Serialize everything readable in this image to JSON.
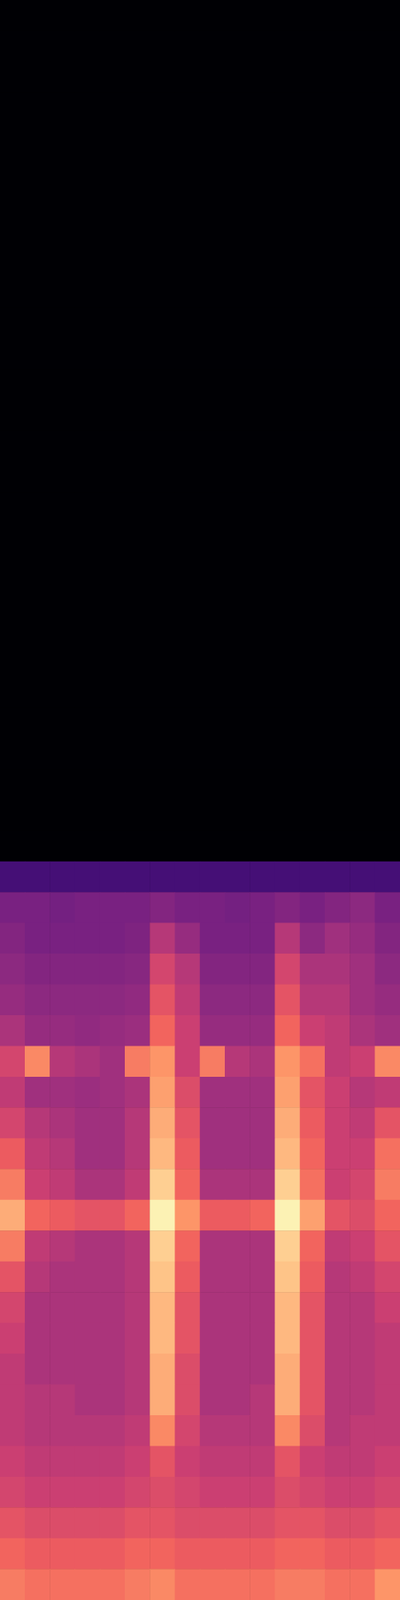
{
  "chart_data": {
    "type": "heatmap",
    "tick_labels": false,
    "grid": false,
    "zlim": [
      -80,
      0
    ],
    "cells": [
      [
        -80,
        -80,
        -80,
        -80,
        -80,
        -80,
        -80,
        -80,
        -80,
        -80,
        -80,
        -80,
        -80,
        -80,
        -80,
        -80
      ],
      [
        -80,
        -80,
        -80,
        -80,
        -80,
        -80,
        -80,
        -80,
        -80,
        -80,
        -80,
        -80,
        -80,
        -80,
        -80,
        -80
      ],
      [
        -80,
        -80,
        -80,
        -80,
        -80,
        -80,
        -80,
        -80,
        -80,
        -80,
        -80,
        -80,
        -80,
        -80,
        -80,
        -80
      ],
      [
        -80,
        -80,
        -80,
        -80,
        -80,
        -80,
        -80,
        -80,
        -80,
        -80,
        -80,
        -80,
        -80,
        -80,
        -80,
        -80
      ],
      [
        -80,
        -80,
        -80,
        -80,
        -80,
        -80,
        -80,
        -80,
        -80,
        -80,
        -80,
        -80,
        -80,
        -80,
        -80,
        -80
      ],
      [
        -80,
        -80,
        -80,
        -80,
        -80,
        -80,
        -80,
        -80,
        -80,
        -80,
        -80,
        -80,
        -80,
        -80,
        -80,
        -80
      ],
      [
        -80,
        -80,
        -80,
        -80,
        -80,
        -80,
        -80,
        -80,
        -80,
        -80,
        -80,
        -80,
        -80,
        -80,
        -80,
        -80
      ],
      [
        -80,
        -80,
        -80,
        -80,
        -80,
        -80,
        -80,
        -80,
        -80,
        -80,
        -80,
        -80,
        -80,
        -80,
        -80,
        -80
      ],
      [
        -80,
        -80,
        -80,
        -80,
        -80,
        -80,
        -80,
        -80,
        -80,
        -80,
        -80,
        -80,
        -80,
        -80,
        -80,
        -80
      ],
      [
        -80,
        -80,
        -80,
        -80,
        -80,
        -80,
        -80,
        -80,
        -80,
        -80,
        -80,
        -80,
        -80,
        -80,
        -80,
        -80
      ],
      [
        -80,
        -80,
        -80,
        -80,
        -80,
        -80,
        -80,
        -80,
        -80,
        -80,
        -80,
        -80,
        -80,
        -80,
        -80,
        -80
      ],
      [
        -80,
        -80,
        -80,
        -80,
        -80,
        -80,
        -80,
        -80,
        -80,
        -80,
        -80,
        -80,
        -80,
        -80,
        -80,
        -80
      ],
      [
        -80,
        -80,
        -80,
        -80,
        -80,
        -80,
        -80,
        -80,
        -80,
        -80,
        -80,
        -80,
        -80,
        -80,
        -80,
        -80
      ],
      [
        -80,
        -80,
        -80,
        -80,
        -80,
        -80,
        -80,
        -80,
        -80,
        -80,
        -80,
        -80,
        -80,
        -80,
        -80,
        -80
      ],
      [
        -80,
        -80,
        -80,
        -80,
        -80,
        -80,
        -80,
        -80,
        -80,
        -80,
        -80,
        -80,
        -80,
        -80,
        -80,
        -80
      ],
      [
        -80,
        -80,
        -80,
        -80,
        -80,
        -80,
        -80,
        -80,
        -80,
        -80,
        -80,
        -80,
        -80,
        -80,
        -80,
        -80
      ],
      [
        -80,
        -80,
        -80,
        -80,
        -80,
        -80,
        -80,
        -80,
        -80,
        -80,
        -80,
        -80,
        -80,
        -80,
        -80,
        -80
      ],
      [
        -80,
        -80,
        -80,
        -80,
        -80,
        -80,
        -80,
        -80,
        -80,
        -80,
        -80,
        -80,
        -80,
        -80,
        -80,
        -80
      ],
      [
        -80,
        -80,
        -80,
        -80,
        -80,
        -80,
        -80,
        -80,
        -80,
        -80,
        -80,
        -80,
        -80,
        -80,
        -80,
        -80
      ],
      [
        -80,
        -80,
        -80,
        -80,
        -80,
        -80,
        -80,
        -80,
        -80,
        -80,
        -80,
        -80,
        -80,
        -80,
        -80,
        -80
      ],
      [
        -80,
        -80,
        -80,
        -80,
        -80,
        -80,
        -80,
        -80,
        -80,
        -80,
        -80,
        -80,
        -80,
        -80,
        -80,
        -80
      ],
      [
        -80,
        -80,
        -80,
        -80,
        -80,
        -80,
        -80,
        -80,
        -80,
        -80,
        -80,
        -80,
        -80,
        -80,
        -80,
        -80
      ],
      [
        -80,
        -80,
        -80,
        -80,
        -80,
        -80,
        -80,
        -80,
        -80,
        -80,
        -80,
        -80,
        -80,
        -80,
        -80,
        -80
      ],
      [
        -80,
        -80,
        -80,
        -80,
        -80,
        -80,
        -80,
        -80,
        -80,
        -80,
        -80,
        -80,
        -80,
        -80,
        -80,
        -80
      ],
      [
        -80,
        -80,
        -80,
        -80,
        -80,
        -80,
        -80,
        -80,
        -80,
        -80,
        -80,
        -80,
        -80,
        -80,
        -80,
        -80
      ],
      [
        -80,
        -80,
        -80,
        -80,
        -80,
        -80,
        -80,
        -80,
        -80,
        -80,
        -80,
        -80,
        -80,
        -80,
        -80,
        -80
      ],
      [
        -80,
        -80,
        -80,
        -80,
        -80,
        -80,
        -80,
        -80,
        -80,
        -80,
        -80,
        -80,
        -80,
        -80,
        -80,
        -80
      ],
      [
        -80,
        -80,
        -80,
        -80,
        -80,
        -80,
        -80,
        -80,
        -80,
        -80,
        -80,
        -80,
        -80,
        -80,
        -80,
        -80
      ],
      [
        -62,
        -62,
        -62,
        -62,
        -62,
        -62,
        -62,
        -62,
        -62,
        -62,
        -62,
        -62,
        -62,
        -62,
        -62,
        -62
      ],
      [
        -52,
        -52,
        -53,
        -52,
        -52,
        -52,
        -50,
        -52,
        -52,
        -53,
        -52,
        -50,
        -52,
        -50,
        -48,
        -52
      ],
      [
        -50,
        -52,
        -52,
        -52,
        -52,
        -51,
        -40,
        -46,
        -52,
        -52,
        -52,
        -40,
        -48,
        -44,
        -46,
        -50
      ],
      [
        -48,
        -50,
        -50,
        -50,
        -50,
        -49,
        -34,
        -40,
        -50,
        -50,
        -50,
        -34,
        -42,
        -42,
        -44,
        -48
      ],
      [
        -46,
        -48,
        -48,
        -48,
        -48,
        -47,
        -30,
        -38,
        -48,
        -48,
        -48,
        -30,
        -40,
        -40,
        -44,
        -46
      ],
      [
        -42,
        -46,
        -46,
        -47,
        -46,
        -45,
        -26,
        -36,
        -46,
        -46,
        -46,
        -26,
        -36,
        -38,
        -42,
        -44
      ],
      [
        -34,
        -20,
        -40,
        -42,
        -44,
        -22,
        -18,
        -36,
        -22,
        -40,
        -42,
        -18,
        -24,
        -38,
        -36,
        -20
      ],
      [
        -38,
        -44,
        -44,
        -45,
        -44,
        -42,
        -16,
        -32,
        -44,
        -44,
        -44,
        -16,
        -30,
        -36,
        -40,
        -38
      ],
      [
        -34,
        -40,
        -42,
        -44,
        -44,
        -40,
        -14,
        -30,
        -44,
        -44,
        -44,
        -14,
        -28,
        -36,
        -38,
        -30
      ],
      [
        -28,
        -38,
        -40,
        -44,
        -44,
        -40,
        -12,
        -28,
        -44,
        -44,
        -44,
        -12,
        -26,
        -36,
        -36,
        -24
      ],
      [
        -22,
        -36,
        -38,
        -42,
        -42,
        -38,
        -8,
        -26,
        -42,
        -42,
        -42,
        -8,
        -24,
        -36,
        -34,
        -22
      ],
      [
        -14,
        -26,
        -28,
        -30,
        -30,
        -26,
        -2,
        -18,
        -28,
        -28,
        -26,
        -2,
        -16,
        -30,
        -32,
        -26
      ],
      [
        -22,
        -38,
        -40,
        -42,
        -42,
        -40,
        -8,
        -26,
        -42,
        -42,
        -42,
        -8,
        -26,
        -38,
        -36,
        -30
      ],
      [
        -30,
        -40,
        -42,
        -42,
        -42,
        -40,
        -10,
        -28,
        -42,
        -42,
        -42,
        -10,
        -28,
        -40,
        -38,
        -34
      ],
      [
        -34,
        -42,
        -42,
        -42,
        -42,
        -40,
        -12,
        -30,
        -42,
        -42,
        -42,
        -12,
        -30,
        -40,
        -40,
        -36
      ],
      [
        -36,
        -42,
        -42,
        -42,
        -42,
        -40,
        -12,
        -30,
        -42,
        -42,
        -42,
        -12,
        -30,
        -40,
        -40,
        -38
      ],
      [
        -38,
        -42,
        -42,
        -42,
        -42,
        -40,
        -14,
        -32,
        -42,
        -42,
        -42,
        -14,
        -30,
        -40,
        -40,
        -38
      ],
      [
        -38,
        -40,
        -40,
        -42,
        -42,
        -40,
        -14,
        -32,
        -42,
        -42,
        -40,
        -14,
        -30,
        -40,
        -40,
        -38
      ],
      [
        -38,
        -40,
        -40,
        -40,
        -40,
        -38,
        -20,
        -34,
        -40,
        -40,
        -40,
        -20,
        -32,
        -40,
        -38,
        -38
      ],
      [
        -36,
        -38,
        -38,
        -38,
        -38,
        -36,
        -30,
        -36,
        -38,
        -38,
        -38,
        -30,
        -36,
        -38,
        -38,
        -36
      ],
      [
        -34,
        -36,
        -36,
        -36,
        -36,
        -34,
        -32,
        -34,
        -36,
        -36,
        -36,
        -32,
        -34,
        -36,
        -36,
        -34
      ],
      [
        -30,
        -32,
        -32,
        -32,
        -32,
        -30,
        -30,
        -32,
        -32,
        -32,
        -32,
        -30,
        -30,
        -32,
        -32,
        -30
      ],
      [
        -26,
        -28,
        -28,
        -28,
        -28,
        -26,
        -26,
        -28,
        -28,
        -28,
        -28,
        -26,
        -26,
        -28,
        -28,
        -26
      ],
      [
        -22,
        -24,
        -24,
        -24,
        -24,
        -22,
        -20,
        -24,
        -24,
        -24,
        -24,
        -22,
        -22,
        -24,
        -24,
        -18
      ]
    ]
  }
}
